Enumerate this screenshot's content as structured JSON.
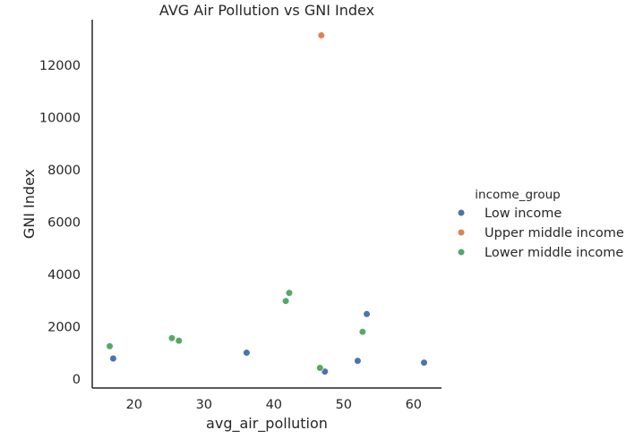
{
  "chart_data": {
    "type": "scatter",
    "title": "AVG Air Pollution vs GNI Index",
    "xlabel": "avg_air_pollution",
    "ylabel": "GNI Index",
    "xlim": [
      14,
      64
    ],
    "ylim": [
      -350,
      13750
    ],
    "xticks": [
      20,
      30,
      40,
      50,
      60
    ],
    "yticks": [
      0,
      2000,
      4000,
      6000,
      8000,
      10000,
      12000
    ],
    "grid": false,
    "legend": {
      "title": "income_group",
      "placement": "right"
    },
    "series": [
      {
        "name": "Low income",
        "color": "#4c72b0",
        "points": [
          {
            "x": 17.0,
            "y": 780
          },
          {
            "x": 36.1,
            "y": 1000
          },
          {
            "x": 47.3,
            "y": 280
          },
          {
            "x": 52.0,
            "y": 690
          },
          {
            "x": 53.3,
            "y": 2480
          },
          {
            "x": 61.5,
            "y": 620
          }
        ]
      },
      {
        "name": "Upper middle income",
        "color": "#dd8452",
        "points": [
          {
            "x": 46.8,
            "y": 13150
          }
        ]
      },
      {
        "name": "Lower middle income",
        "color": "#55a868",
        "points": [
          {
            "x": 16.5,
            "y": 1250
          },
          {
            "x": 25.4,
            "y": 1560
          },
          {
            "x": 26.4,
            "y": 1460
          },
          {
            "x": 41.7,
            "y": 2980
          },
          {
            "x": 42.2,
            "y": 3290
          },
          {
            "x": 46.6,
            "y": 420
          },
          {
            "x": 52.7,
            "y": 1800
          }
        ]
      }
    ]
  }
}
